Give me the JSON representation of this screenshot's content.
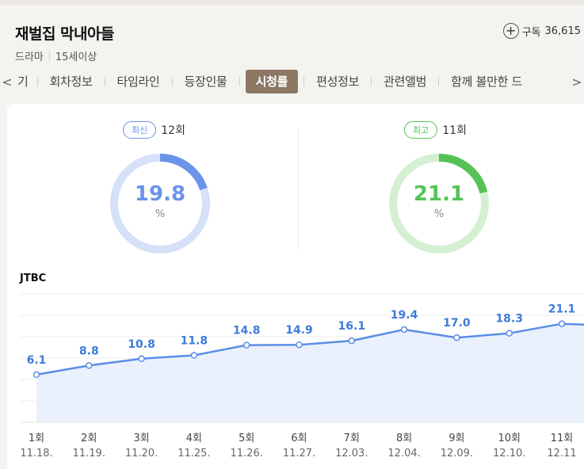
{
  "program": {
    "title": "재벌집 막내아들",
    "genre": "드라마",
    "rating": "15세이상",
    "subscribe_label": "구독",
    "subscriber_count": "36,615"
  },
  "tabs": {
    "left_arrow": "<",
    "partial_left": "기",
    "items": [
      "회차정보",
      "타임라인",
      "등장인물",
      "시청률",
      "편성정보",
      "관련앨범",
      "함께 볼만한 드"
    ],
    "active_index": 3,
    "right_arrow": ">"
  },
  "stats": {
    "latest": {
      "badge": "최신",
      "episode": "12회",
      "value": "19.8",
      "unit": "%",
      "fraction": 0.198,
      "color": "#6b93e8",
      "track": "#d4e1f8"
    },
    "best": {
      "badge": "최고",
      "episode": "11회",
      "value": "21.1",
      "unit": "%",
      "fraction": 0.211,
      "color": "#56c256",
      "track": "#d5efd3"
    }
  },
  "channel": "JTBC",
  "chart_data": {
    "type": "line",
    "categories": [
      "1회",
      "2회",
      "3회",
      "4회",
      "5회",
      "6회",
      "7회",
      "8회",
      "9회",
      "10회",
      "11회"
    ],
    "dates": [
      "11.18.",
      "11.19.",
      "11.20.",
      "11.25.",
      "11.26.",
      "11.27.",
      "12.03.",
      "12.04.",
      "12.09.",
      "12.10.",
      "12.11"
    ],
    "values": [
      6.1,
      8.8,
      10.8,
      11.8,
      14.8,
      14.9,
      16.1,
      19.4,
      17.0,
      18.3,
      21.1
    ],
    "labels": [
      "6.1",
      "8.8",
      "10.8",
      "11.8",
      "14.8",
      "14.9",
      "16.1",
      "19.4",
      "17.0",
      "18.3",
      "21.1"
    ],
    "line_color": "#5b8ee6",
    "fill_color": "#eaf1fd",
    "label_color": "#3f7bd9",
    "grid": true
  }
}
